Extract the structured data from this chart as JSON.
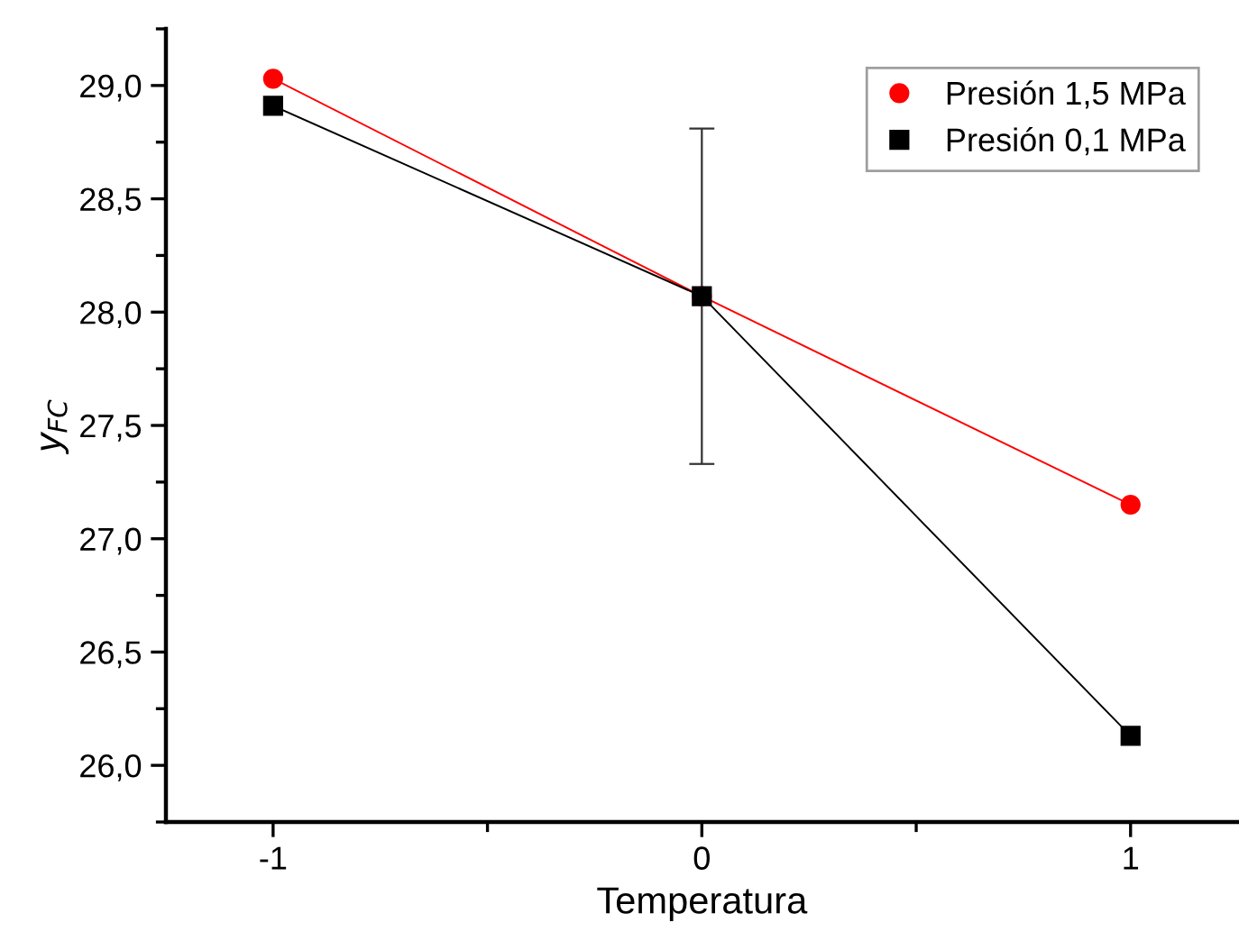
{
  "chart_data": {
    "type": "line",
    "xlabel": "Temperatura",
    "ylabel": "y$_{FC}$",
    "x": [
      -1,
      0,
      1
    ],
    "series": [
      {
        "name": "Presión 1,5 MPa",
        "color": "#ff0000",
        "marker": "circle",
        "values": [
          29.03,
          28.07,
          27.15
        ]
      },
      {
        "name": "Presión 0,1 MPa",
        "color": "#000000",
        "marker": "square",
        "values": [
          28.91,
          28.07,
          26.13
        ],
        "errors": [
          null,
          0.74,
          null
        ]
      }
    ],
    "xlim": [
      -1.25,
      1.25
    ],
    "xticks": [
      -1,
      0,
      1
    ],
    "ylim": [
      25.75,
      29.25
    ],
    "yticks": [
      {
        "value": 26.0,
        "label": "26,0"
      },
      {
        "value": 26.5,
        "label": "26,5"
      },
      {
        "value": 27.0,
        "label": "27,0"
      },
      {
        "value": 27.5,
        "label": "27,5"
      },
      {
        "value": 28.0,
        "label": "28,0"
      },
      {
        "value": 28.5,
        "label": "28,5"
      },
      {
        "value": 29.0,
        "label": "29,0"
      }
    ],
    "grid": false,
    "legend": "top right",
    "line_style": "solid"
  }
}
